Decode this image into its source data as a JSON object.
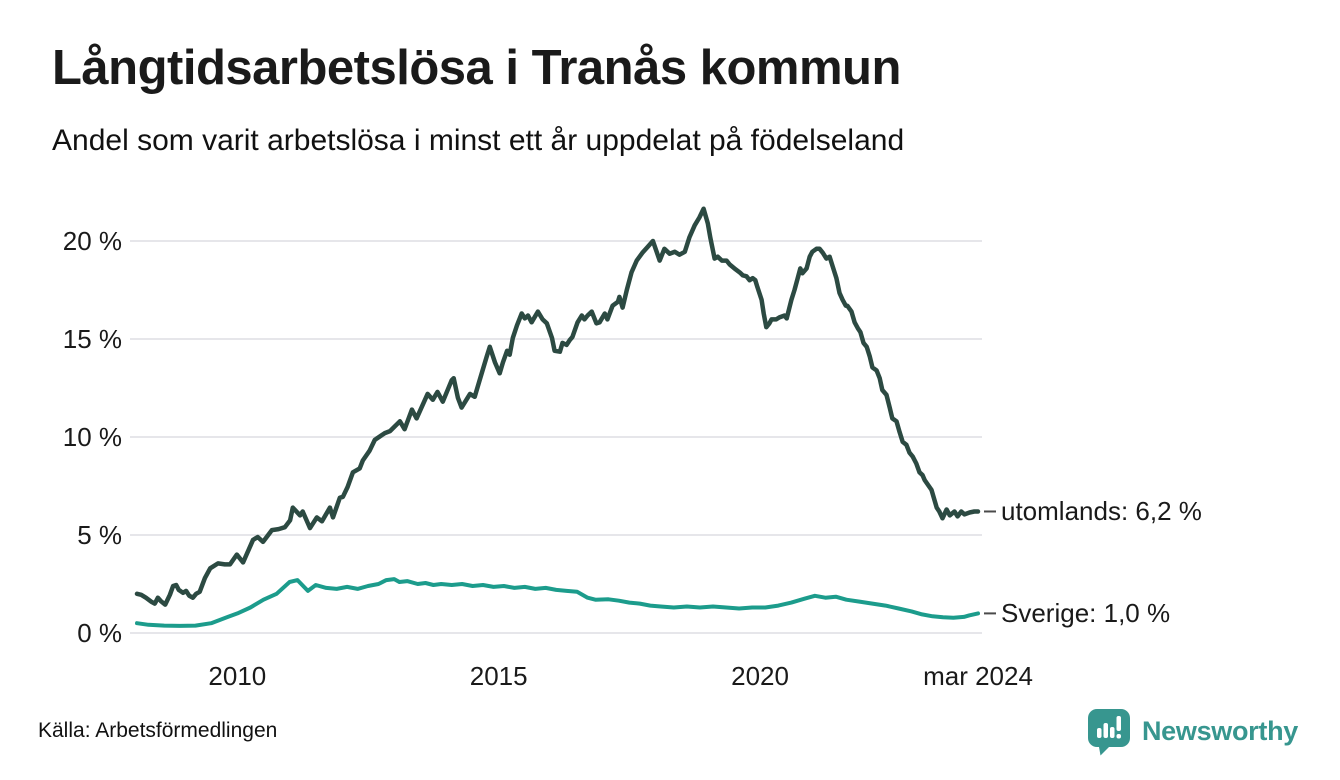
{
  "header": {
    "title": "Långtidsarbetslösa i Tranås kommun",
    "subtitle": "Andel som varit arbetslösa i minst ett år uppdelat på födelseland"
  },
  "footer": {
    "source": "Källa: Arbetsförmedlingen",
    "brand": "Newsworthy"
  },
  "colors": {
    "utomlands_line": "#2c4a42",
    "sverige_line": "#1c9c8c",
    "gridline": "#e6e6ea",
    "text": "#1a1a1a",
    "label_dash": "#4a4a4a",
    "brand_teal": "#37968f"
  },
  "chart_data": {
    "type": "line",
    "title": "Långtidsarbetslösa i Tranås kommun",
    "subtitle": "Andel som varit arbetslösa i minst ett år uppdelat på födelseland",
    "xlabel": "",
    "ylabel": "",
    "xlim": [
      2008.08,
      2024.17
    ],
    "ylim": [
      0,
      22
    ],
    "grid": "horizontal-only",
    "legend_position": "end-of-line-labels",
    "yticks": [
      {
        "v": 0,
        "label": "0 %"
      },
      {
        "v": 5,
        "label": "5 %"
      },
      {
        "v": 10,
        "label": "10 %"
      },
      {
        "v": 15,
        "label": "15 %"
      },
      {
        "v": 20,
        "label": "20 %"
      }
    ],
    "xticks": [
      {
        "v": 2010,
        "label": "2010"
      },
      {
        "v": 2015,
        "label": "2015"
      },
      {
        "v": 2020,
        "label": "2020"
      },
      {
        "v": 2024.17,
        "label": "mar 2024"
      }
    ],
    "series": [
      {
        "name": "utomlands",
        "color": "#2c4a42",
        "end_label": "utomlands: 6,2 %",
        "last_value_display": "6,2 %",
        "points": [
          [
            2008.08,
            2.0
          ],
          [
            2008.16,
            1.95
          ],
          [
            2008.25,
            1.8
          ],
          [
            2008.35,
            1.6
          ],
          [
            2008.42,
            1.5
          ],
          [
            2008.48,
            1.8
          ],
          [
            2008.54,
            1.62
          ],
          [
            2008.62,
            1.45
          ],
          [
            2008.71,
            1.95
          ],
          [
            2008.77,
            2.4
          ],
          [
            2008.83,
            2.45
          ],
          [
            2008.88,
            2.2
          ],
          [
            2008.96,
            2.05
          ],
          [
            2009.02,
            2.15
          ],
          [
            2009.08,
            1.9
          ],
          [
            2009.15,
            1.8
          ],
          [
            2009.21,
            2.0
          ],
          [
            2009.28,
            2.1
          ],
          [
            2009.38,
            2.8
          ],
          [
            2009.48,
            3.3
          ],
          [
            2009.63,
            3.55
          ],
          [
            2009.76,
            3.5
          ],
          [
            2009.86,
            3.5
          ],
          [
            2009.99,
            4.0
          ],
          [
            2010.11,
            3.6
          ],
          [
            2010.3,
            4.75
          ],
          [
            2010.39,
            4.9
          ],
          [
            2010.49,
            4.65
          ],
          [
            2010.66,
            5.25
          ],
          [
            2010.79,
            5.3
          ],
          [
            2010.91,
            5.4
          ],
          [
            2011.01,
            5.75
          ],
          [
            2011.06,
            6.4
          ],
          [
            2011.2,
            6.0
          ],
          [
            2011.25,
            6.2
          ],
          [
            2011.39,
            5.35
          ],
          [
            2011.52,
            5.9
          ],
          [
            2011.62,
            5.7
          ],
          [
            2011.77,
            6.4
          ],
          [
            2011.83,
            5.9
          ],
          [
            2011.96,
            6.9
          ],
          [
            2012.02,
            6.95
          ],
          [
            2012.11,
            7.45
          ],
          [
            2012.21,
            8.2
          ],
          [
            2012.34,
            8.4
          ],
          [
            2012.4,
            8.8
          ],
          [
            2012.53,
            9.3
          ],
          [
            2012.63,
            9.85
          ],
          [
            2012.82,
            10.2
          ],
          [
            2012.92,
            10.3
          ],
          [
            2013.11,
            10.8
          ],
          [
            2013.2,
            10.4
          ],
          [
            2013.34,
            11.4
          ],
          [
            2013.43,
            10.95
          ],
          [
            2013.64,
            12.2
          ],
          [
            2013.74,
            11.9
          ],
          [
            2013.83,
            12.3
          ],
          [
            2013.93,
            11.8
          ],
          [
            2014.1,
            12.9
          ],
          [
            2014.14,
            13.0
          ],
          [
            2014.22,
            12.0
          ],
          [
            2014.29,
            11.5
          ],
          [
            2014.45,
            12.2
          ],
          [
            2014.54,
            12.05
          ],
          [
            2014.68,
            13.3
          ],
          [
            2014.77,
            14.1
          ],
          [
            2014.83,
            14.6
          ],
          [
            2014.93,
            13.8
          ],
          [
            2015.02,
            13.25
          ],
          [
            2015.08,
            13.8
          ],
          [
            2015.16,
            14.4
          ],
          [
            2015.21,
            14.2
          ],
          [
            2015.27,
            15.05
          ],
          [
            2015.35,
            15.7
          ],
          [
            2015.44,
            16.3
          ],
          [
            2015.5,
            16.05
          ],
          [
            2015.56,
            16.2
          ],
          [
            2015.63,
            15.85
          ],
          [
            2015.75,
            16.4
          ],
          [
            2015.84,
            16.0
          ],
          [
            2015.92,
            15.8
          ],
          [
            2016.02,
            15.05
          ],
          [
            2016.07,
            14.4
          ],
          [
            2016.17,
            14.35
          ],
          [
            2016.22,
            14.8
          ],
          [
            2016.3,
            14.7
          ],
          [
            2016.36,
            14.95
          ],
          [
            2016.41,
            15.1
          ],
          [
            2016.51,
            15.85
          ],
          [
            2016.59,
            16.2
          ],
          [
            2016.64,
            16.0
          ],
          [
            2016.7,
            16.2
          ],
          [
            2016.78,
            16.4
          ],
          [
            2016.87,
            15.8
          ],
          [
            2016.93,
            15.85
          ],
          [
            2017.03,
            16.3
          ],
          [
            2017.08,
            16.0
          ],
          [
            2017.18,
            16.7
          ],
          [
            2017.28,
            16.9
          ],
          [
            2017.31,
            17.15
          ],
          [
            2017.37,
            16.6
          ],
          [
            2017.45,
            17.5
          ],
          [
            2017.54,
            18.4
          ],
          [
            2017.64,
            19.0
          ],
          [
            2017.75,
            19.4
          ],
          [
            2017.85,
            19.7
          ],
          [
            2017.95,
            20.0
          ],
          [
            2018.08,
            19.0
          ],
          [
            2018.17,
            19.6
          ],
          [
            2018.27,
            19.35
          ],
          [
            2018.37,
            19.45
          ],
          [
            2018.46,
            19.3
          ],
          [
            2018.56,
            19.45
          ],
          [
            2018.65,
            20.2
          ],
          [
            2018.75,
            20.8
          ],
          [
            2018.84,
            21.2
          ],
          [
            2018.92,
            21.65
          ],
          [
            2019.0,
            20.9
          ],
          [
            2019.05,
            20.15
          ],
          [
            2019.13,
            19.1
          ],
          [
            2019.19,
            19.2
          ],
          [
            2019.27,
            19.0
          ],
          [
            2019.36,
            19.0
          ],
          [
            2019.42,
            18.8
          ],
          [
            2019.51,
            18.6
          ],
          [
            2019.61,
            18.4
          ],
          [
            2019.67,
            18.25
          ],
          [
            2019.74,
            18.2
          ],
          [
            2019.8,
            18.0
          ],
          [
            2019.86,
            18.1
          ],
          [
            2019.91,
            18.0
          ],
          [
            2019.95,
            17.65
          ],
          [
            2020.03,
            17.0
          ],
          [
            2020.07,
            16.3
          ],
          [
            2020.12,
            15.6
          ],
          [
            2020.18,
            15.8
          ],
          [
            2020.22,
            16.0
          ],
          [
            2020.31,
            16.0
          ],
          [
            2020.37,
            16.1
          ],
          [
            2020.47,
            16.2
          ],
          [
            2020.51,
            16.05
          ],
          [
            2020.6,
            17.0
          ],
          [
            2020.66,
            17.5
          ],
          [
            2020.72,
            18.1
          ],
          [
            2020.77,
            18.6
          ],
          [
            2020.81,
            18.35
          ],
          [
            2020.89,
            18.6
          ],
          [
            2020.95,
            19.2
          ],
          [
            2021.0,
            19.45
          ],
          [
            2021.08,
            19.6
          ],
          [
            2021.14,
            19.6
          ],
          [
            2021.2,
            19.4
          ],
          [
            2021.27,
            19.1
          ],
          [
            2021.33,
            19.2
          ],
          [
            2021.39,
            18.7
          ],
          [
            2021.46,
            18.1
          ],
          [
            2021.52,
            17.35
          ],
          [
            2021.58,
            17.0
          ],
          [
            2021.64,
            16.7
          ],
          [
            2021.67,
            16.7
          ],
          [
            2021.75,
            16.4
          ],
          [
            2021.81,
            15.85
          ],
          [
            2021.87,
            15.55
          ],
          [
            2021.92,
            15.35
          ],
          [
            2021.98,
            14.8
          ],
          [
            2022.04,
            14.6
          ],
          [
            2022.1,
            14.1
          ],
          [
            2022.15,
            13.55
          ],
          [
            2022.23,
            13.4
          ],
          [
            2022.29,
            13.0
          ],
          [
            2022.34,
            12.4
          ],
          [
            2022.42,
            12.15
          ],
          [
            2022.48,
            11.5
          ],
          [
            2022.53,
            10.95
          ],
          [
            2022.61,
            10.8
          ],
          [
            2022.67,
            10.25
          ],
          [
            2022.73,
            9.75
          ],
          [
            2022.8,
            9.6
          ],
          [
            2022.86,
            9.2
          ],
          [
            2022.92,
            9.0
          ],
          [
            2022.99,
            8.65
          ],
          [
            2023.05,
            8.2
          ],
          [
            2023.11,
            8.05
          ],
          [
            2023.15,
            7.8
          ],
          [
            2023.28,
            7.3
          ],
          [
            2023.38,
            6.4
          ],
          [
            2023.43,
            6.2
          ],
          [
            2023.49,
            5.85
          ],
          [
            2023.57,
            6.3
          ],
          [
            2023.63,
            6.0
          ],
          [
            2023.72,
            6.2
          ],
          [
            2023.78,
            5.95
          ],
          [
            2023.85,
            6.2
          ],
          [
            2023.91,
            6.05
          ],
          [
            2024.01,
            6.15
          ],
          [
            2024.1,
            6.2
          ],
          [
            2024.17,
            6.2
          ]
        ]
      },
      {
        "name": "Sverige",
        "color": "#1c9c8c",
        "end_label": "Sverige: 1,0 %",
        "last_value_display": "1,0 %",
        "points": [
          [
            2008.08,
            0.5
          ],
          [
            2008.3,
            0.42
          ],
          [
            2008.6,
            0.38
          ],
          [
            2008.9,
            0.36
          ],
          [
            2009.2,
            0.38
          ],
          [
            2009.5,
            0.5
          ],
          [
            2009.8,
            0.8
          ],
          [
            2010.0,
            1.0
          ],
          [
            2010.25,
            1.3
          ],
          [
            2010.5,
            1.7
          ],
          [
            2010.75,
            2.0
          ],
          [
            2011.0,
            2.6
          ],
          [
            2011.15,
            2.7
          ],
          [
            2011.35,
            2.15
          ],
          [
            2011.5,
            2.45
          ],
          [
            2011.7,
            2.3
          ],
          [
            2011.9,
            2.25
          ],
          [
            2012.1,
            2.35
          ],
          [
            2012.3,
            2.25
          ],
          [
            2012.5,
            2.4
          ],
          [
            2012.7,
            2.5
          ],
          [
            2012.85,
            2.7
          ],
          [
            2013.0,
            2.75
          ],
          [
            2013.1,
            2.6
          ],
          [
            2013.25,
            2.65
          ],
          [
            2013.45,
            2.5
          ],
          [
            2013.6,
            2.55
          ],
          [
            2013.75,
            2.45
          ],
          [
            2013.9,
            2.5
          ],
          [
            2014.1,
            2.45
          ],
          [
            2014.3,
            2.5
          ],
          [
            2014.5,
            2.4
          ],
          [
            2014.7,
            2.45
          ],
          [
            2014.9,
            2.35
          ],
          [
            2015.1,
            2.4
          ],
          [
            2015.3,
            2.3
          ],
          [
            2015.5,
            2.35
          ],
          [
            2015.7,
            2.25
          ],
          [
            2015.9,
            2.3
          ],
          [
            2016.1,
            2.2
          ],
          [
            2016.3,
            2.15
          ],
          [
            2016.5,
            2.1
          ],
          [
            2016.7,
            1.8
          ],
          [
            2016.85,
            1.7
          ],
          [
            2017.1,
            1.72
          ],
          [
            2017.3,
            1.65
          ],
          [
            2017.5,
            1.55
          ],
          [
            2017.7,
            1.5
          ],
          [
            2017.9,
            1.4
          ],
          [
            2018.1,
            1.35
          ],
          [
            2018.35,
            1.3
          ],
          [
            2018.6,
            1.35
          ],
          [
            2018.85,
            1.3
          ],
          [
            2019.1,
            1.35
          ],
          [
            2019.35,
            1.3
          ],
          [
            2019.6,
            1.25
          ],
          [
            2019.85,
            1.3
          ],
          [
            2020.1,
            1.3
          ],
          [
            2020.35,
            1.4
          ],
          [
            2020.6,
            1.55
          ],
          [
            2020.85,
            1.75
          ],
          [
            2021.05,
            1.9
          ],
          [
            2021.25,
            1.8
          ],
          [
            2021.45,
            1.85
          ],
          [
            2021.65,
            1.7
          ],
          [
            2021.9,
            1.6
          ],
          [
            2022.15,
            1.5
          ],
          [
            2022.4,
            1.4
          ],
          [
            2022.65,
            1.25
          ],
          [
            2022.9,
            1.1
          ],
          [
            2023.1,
            0.95
          ],
          [
            2023.3,
            0.85
          ],
          [
            2023.5,
            0.8
          ],
          [
            2023.7,
            0.78
          ],
          [
            2023.9,
            0.82
          ],
          [
            2024.0,
            0.9
          ],
          [
            2024.17,
            1.0
          ]
        ]
      }
    ]
  }
}
